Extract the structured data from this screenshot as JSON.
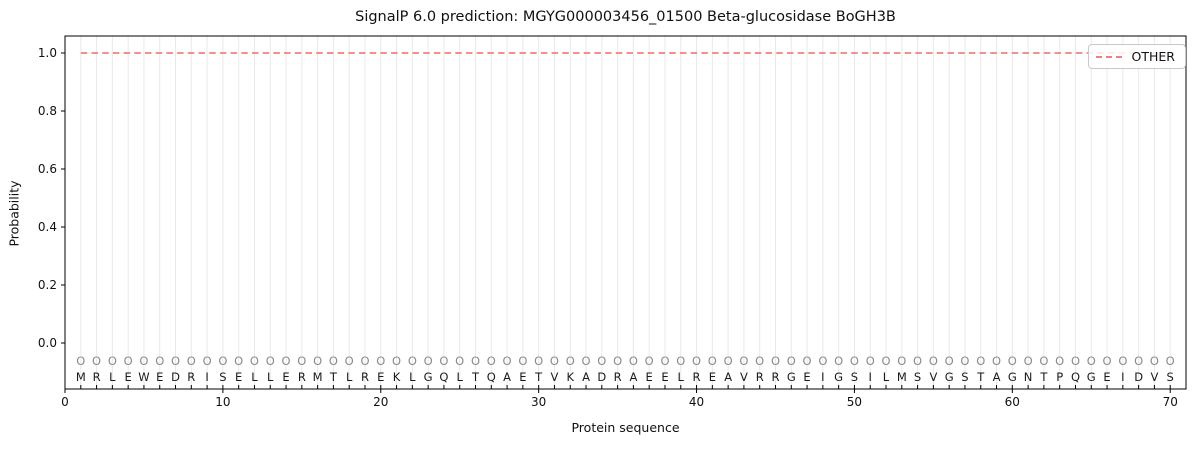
{
  "figure": {
    "title": "SignalP 6.0 prediction: MGYG000003456_01500 Beta-glucosidase BoGH3B"
  },
  "chart_data": {
    "type": "line",
    "title": "SignalP 6.0 prediction: MGYG000003456_01500 Beta-glucosidase BoGH3B",
    "xlabel": "Protein sequence",
    "ylabel": "Probability",
    "xlim": [
      0,
      71
    ],
    "ylim": [
      -0.1586,
      1.0586
    ],
    "xticks": [
      0,
      10,
      20,
      30,
      40,
      50,
      60,
      70
    ],
    "yticks": [
      "0.0",
      "0.2",
      "0.4",
      "0.6",
      "0.8",
      "1.0"
    ],
    "grid": "vertical gridline at every residue position, no horizontal gridlines",
    "sequence": "MRLEWEDRISELLERMTLREKLGQLTQAETVKADRAEELREAVRRGEIGSILMSVGSTAGNTPQGEIDVS",
    "per_residue_prediction": "OOOOOOOOOOOOOOOOOOOOOOOOOOOOOOOOOOOOOOOOOOOOOOOOOOOOOOOOOOOOOOOOOOOOOO",
    "series": [
      {
        "name": "OTHER",
        "style": "dashed",
        "color": "#f08080",
        "x_range": [
          1,
          70
        ],
        "constant_y": 1.0,
        "note": "constant probability 1.0 across all 70 residues"
      }
    ],
    "legend": {
      "position": "upper right",
      "entries": [
        {
          "label": "OTHER",
          "color": "#f08080",
          "style": "dashed"
        }
      ]
    },
    "colors": {
      "grid": "#e9e9e9",
      "prediction_letters": "#8a8a8a",
      "sequence_letters": "#1a1a1a",
      "spine": "#000000"
    }
  }
}
